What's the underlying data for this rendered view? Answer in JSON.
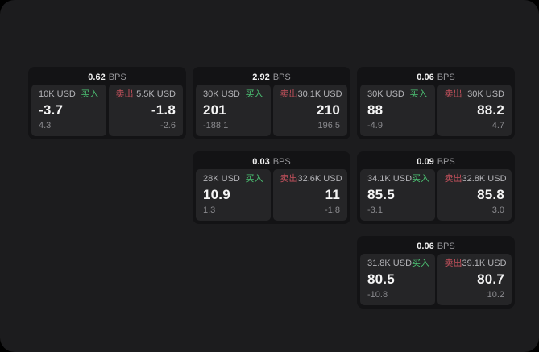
{
  "labels": {
    "bps": "BPS",
    "buy": "买入",
    "sell": "卖出"
  },
  "colors": {
    "window_bg": "#1c1c1e",
    "card_bg": "#131315",
    "panel_bg": "#252527",
    "buy_green": "#4cc273",
    "sell_red": "#c4515c"
  },
  "cards": [
    {
      "spread": "0.62",
      "buy": {
        "amount": "10K USD",
        "price": "-3.7",
        "delta": "4.3"
      },
      "sell": {
        "amount": "5.5K USD",
        "price": "-1.8",
        "delta": "-2.6"
      }
    },
    {
      "spread": "2.92",
      "buy": {
        "amount": "30K USD",
        "price": "201",
        "delta": "-188.1"
      },
      "sell": {
        "amount": "30.1K USD",
        "price": "210",
        "delta": "196.5"
      }
    },
    {
      "spread": "0.06",
      "buy": {
        "amount": "30K USD",
        "price": "88",
        "delta": "-4.9"
      },
      "sell": {
        "amount": "30K USD",
        "price": "88.2",
        "delta": "4.7"
      }
    },
    {
      "spread": "0.03",
      "buy": {
        "amount": "28K USD",
        "price": "10.9",
        "delta": "1.3"
      },
      "sell": {
        "amount": "32.6K USD",
        "price": "11",
        "delta": "-1.8"
      }
    },
    {
      "spread": "0.09",
      "buy": {
        "amount": "34.1K USD",
        "price": "85.5",
        "delta": "-3.1"
      },
      "sell": {
        "amount": "32.8K USD",
        "price": "85.8",
        "delta": "3.0"
      }
    },
    {
      "spread": "0.06",
      "buy": {
        "amount": "31.8K USD",
        "price": "80.5",
        "delta": "-10.8"
      },
      "sell": {
        "amount": "39.1K USD",
        "price": "80.7",
        "delta": "10.2"
      }
    }
  ]
}
